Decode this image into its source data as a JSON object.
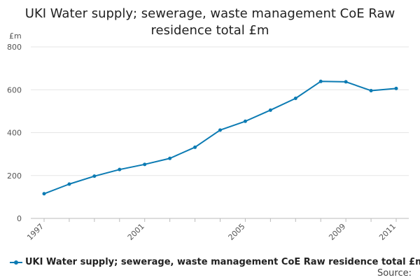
{
  "chart_data": {
    "type": "line",
    "title": "UKI Water supply; sewerage, waste management CoE Raw residence total £m",
    "unit_label": "£m",
    "xlabel": "",
    "ylabel": "",
    "ylim": [
      0,
      800
    ],
    "y_ticks": [
      0,
      200,
      400,
      600,
      800
    ],
    "x_tick_labels": [
      "1997",
      "2001",
      "2005",
      "2009",
      "2011"
    ],
    "x": [
      1997,
      1998,
      1999,
      2000,
      2001,
      2002,
      2003,
      2004,
      2005,
      2006,
      2007,
      2008,
      2009,
      2010,
      2011
    ],
    "series": [
      {
        "name": "UKI Water supply; sewerage, waste management CoE Raw residence total £m",
        "color": "#0c7bb3",
        "values": [
          115,
          160,
          197,
          228,
          252,
          280,
          332,
          412,
          453,
          505,
          560,
          639,
          637,
          596,
          606
        ]
      }
    ],
    "grid": true,
    "legend_position": "bottom-left",
    "source_label": "Source:"
  }
}
